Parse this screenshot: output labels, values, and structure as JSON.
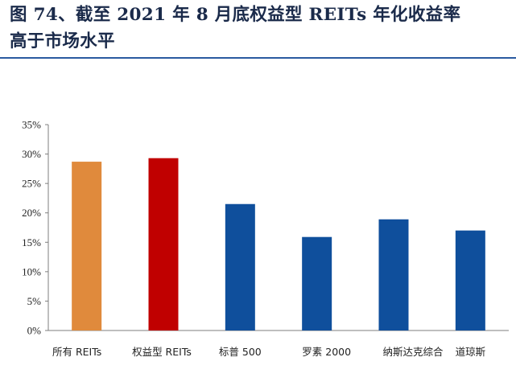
{
  "figure": {
    "title_line1": "图 74、截至 2021 年 8 月底权益型 REITs 年化收益率",
    "title_line2": "高于市场水平"
  },
  "chart_data": {
    "type": "bar",
    "categories": [
      "所有 REITs",
      "权益型 REITs",
      "标普 500",
      "罗素 2000",
      "纳斯达克综合",
      "道琼斯"
    ],
    "values": [
      28.7,
      29.3,
      21.5,
      15.9,
      18.9,
      17.0
    ],
    "value_unit": "%",
    "bar_colors": [
      "#E08A3C",
      "#C00000",
      "#0F4F9C",
      "#0F4F9C",
      "#0F4F9C",
      "#0F4F9C"
    ],
    "ylim": [
      0,
      35
    ],
    "yticks": [
      0,
      5,
      10,
      15,
      20,
      25,
      30,
      35
    ],
    "ytick_labels": [
      "0%",
      "5%",
      "10%",
      "15%",
      "20%",
      "25%",
      "30%",
      "35%"
    ],
    "grid": false,
    "legend": "none",
    "title": "",
    "xlabel": "",
    "ylabel": ""
  }
}
